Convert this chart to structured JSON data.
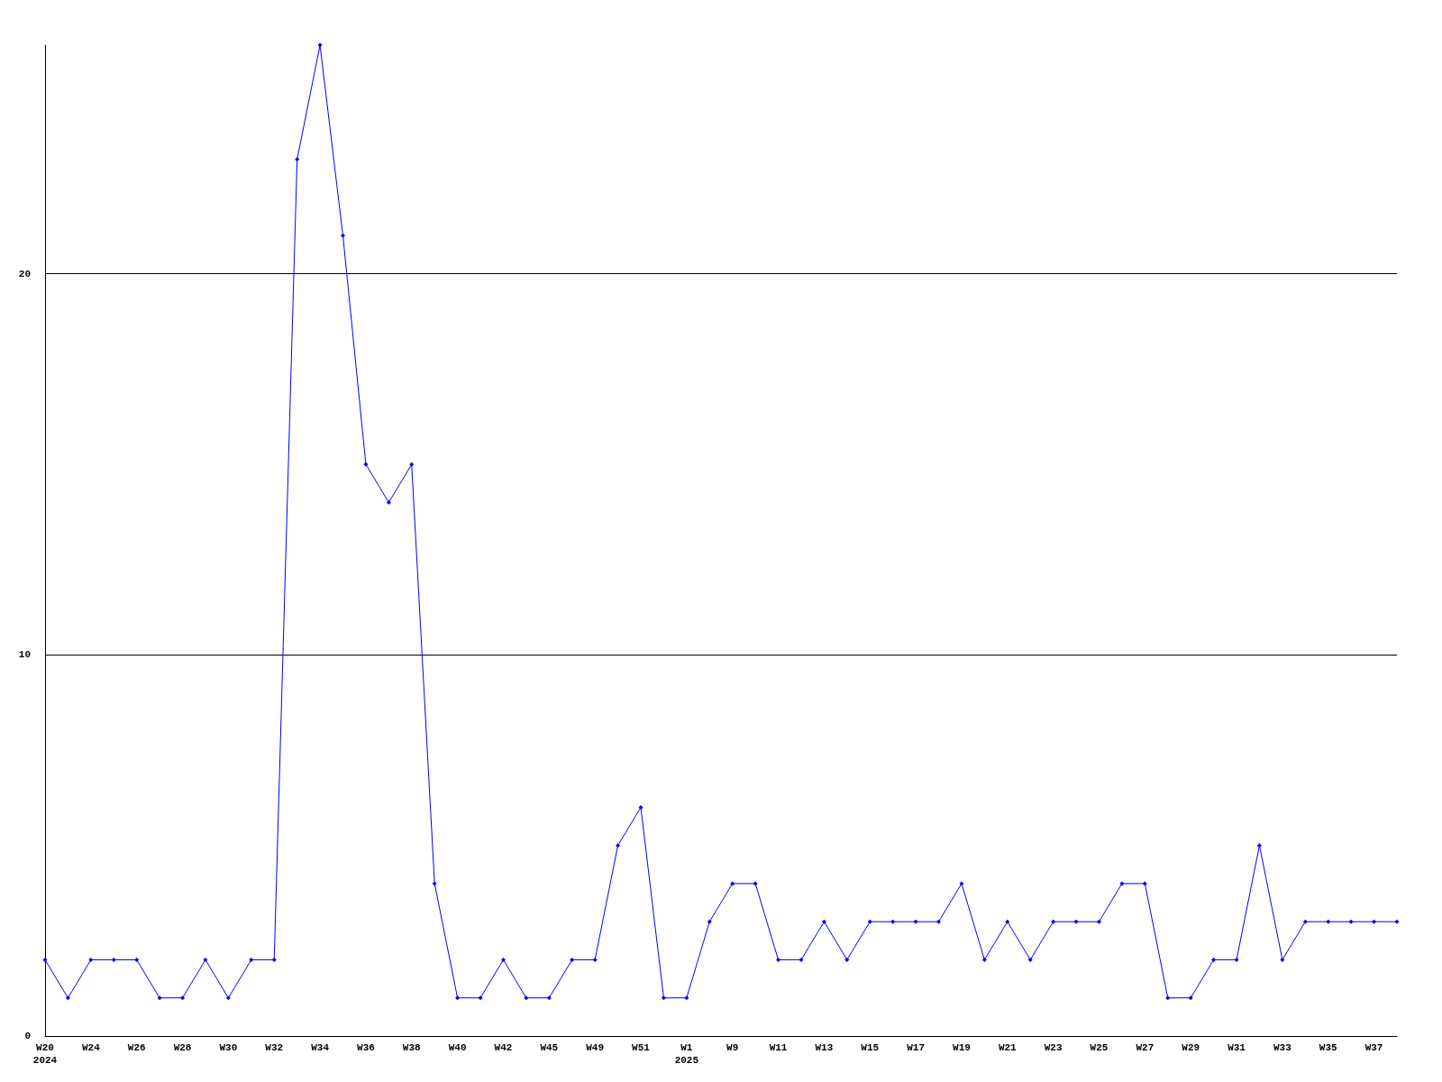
{
  "chart_data": {
    "type": "line",
    "categories": [
      "W20\n2024",
      null,
      "W24",
      null,
      "W26",
      null,
      "W28",
      null,
      "W30",
      null,
      "W32",
      null,
      "W34",
      null,
      "W36",
      null,
      "W38",
      null,
      "W40",
      null,
      "W42",
      null,
      "W45",
      null,
      "W49",
      null,
      "W51",
      null,
      "W1\n2025",
      null,
      "W9",
      null,
      "W11",
      null,
      "W13",
      null,
      "W15",
      null,
      "W17",
      null,
      "W19",
      null,
      "W21",
      null,
      "W23",
      null,
      "W25",
      null,
      "W27",
      null,
      "W29",
      null,
      "W31",
      null,
      "W33",
      null,
      "W35",
      null,
      "W37",
      null
    ],
    "series": [
      {
        "color": "#0000ff",
        "values": [
          2,
          1,
          2,
          2,
          2,
          1,
          1,
          2,
          1,
          2,
          2,
          23,
          26,
          21,
          15,
          14,
          15,
          4,
          1,
          1,
          2,
          1,
          1,
          2,
          2,
          5,
          6,
          1,
          1,
          3,
          4,
          4,
          2,
          2,
          3,
          2,
          3,
          3,
          3,
          3,
          4,
          2,
          3,
          2,
          3,
          3,
          3,
          4,
          4,
          1,
          1,
          2,
          2,
          5,
          2,
          3,
          3,
          3,
          3,
          3
        ]
      }
    ],
    "ylim": [
      0,
      26
    ],
    "yticks": [
      0,
      10,
      20
    ],
    "grid": "y",
    "marker": "diamond",
    "line_style": "solid"
  }
}
